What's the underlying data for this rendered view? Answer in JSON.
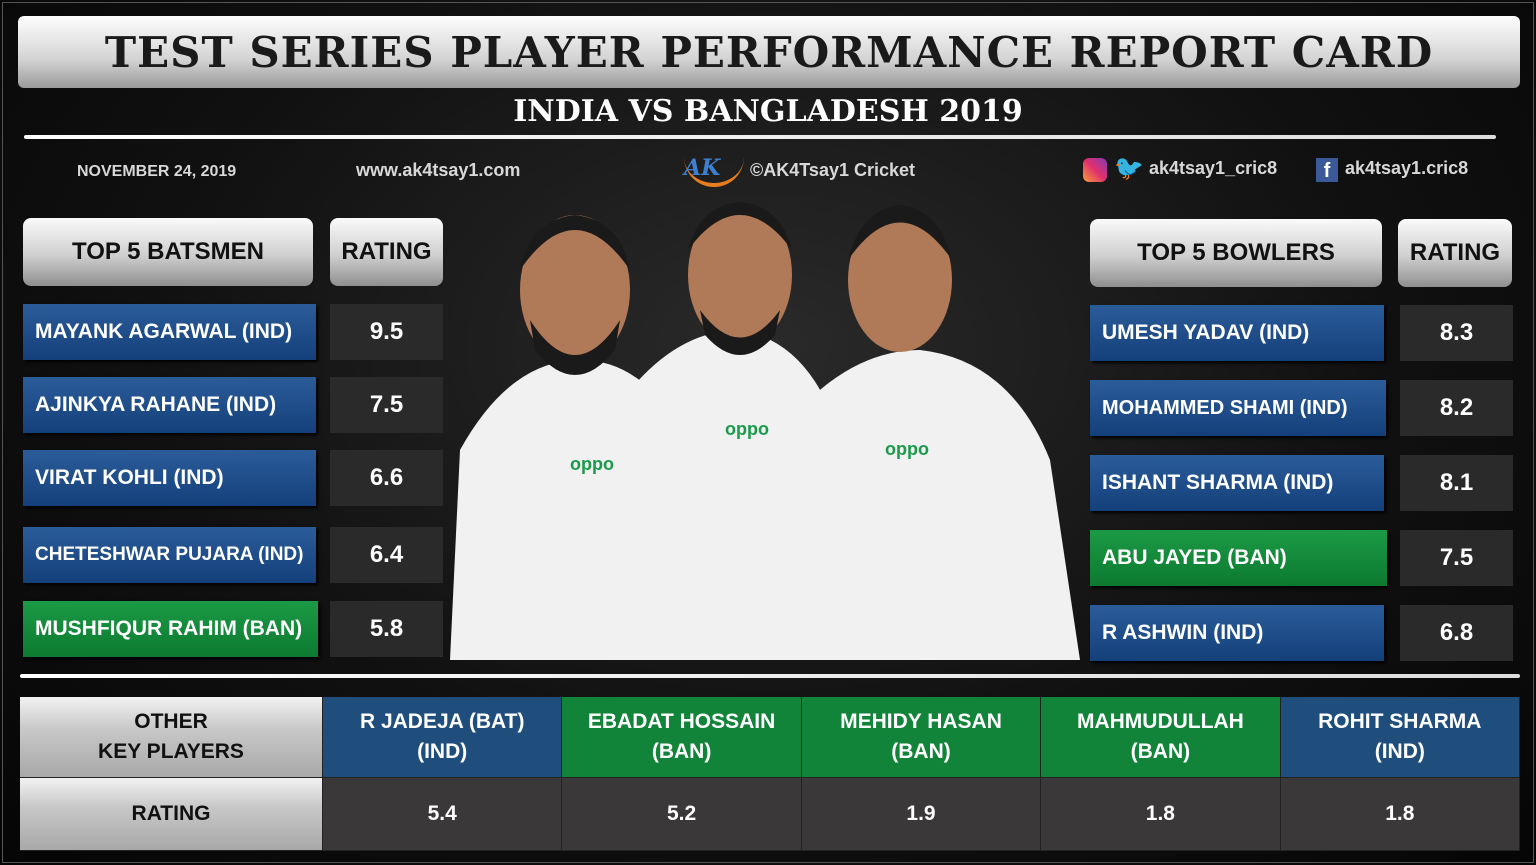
{
  "title": "TEST SERIES PLAYER PERFORMANCE REPORT CARD",
  "subtitle": "INDIA VS BANGLADESH 2019",
  "info": {
    "date": "NOVEMBER 24, 2019",
    "website": "www.ak4tsay1.com",
    "brand": "©AK4Tsay1 Cricket",
    "logo_text": "AK",
    "social_handle": "ak4tsay1_cric8",
    "facebook_handle": "ak4tsay1.cric8"
  },
  "colors": {
    "india": "#1f4e7d",
    "bangladesh": "#11843a"
  },
  "batsmen": {
    "header": "TOP 5 BATSMEN",
    "rating_header": "RATING",
    "rows": [
      {
        "name": "MAYANK AGARWAL (IND)",
        "rating": "9.5",
        "team": "IND"
      },
      {
        "name": "AJINKYA RAHANE (IND)",
        "rating": "7.5",
        "team": "IND"
      },
      {
        "name": "VIRAT KOHLI (IND)",
        "rating": "6.6",
        "team": "IND"
      },
      {
        "name": "CHETESHWAR PUJARA (IND)",
        "rating": "6.4",
        "team": "IND"
      },
      {
        "name": "MUSHFIQUR RAHIM (BAN)",
        "rating": "5.8",
        "team": "BAN"
      }
    ]
  },
  "bowlers": {
    "header": "TOP 5 BOWLERS",
    "rating_header": "RATING",
    "rows": [
      {
        "name": "UMESH YADAV  (IND)",
        "rating": "8.3",
        "team": "IND"
      },
      {
        "name": "MOHAMMED SHAMI (IND)",
        "rating": "8.2",
        "team": "IND"
      },
      {
        "name": "ISHANT SHARMA (IND)",
        "rating": "8.1",
        "team": "IND"
      },
      {
        "name": "ABU JAYED (BAN)",
        "rating": "7.5",
        "team": "BAN"
      },
      {
        "name": "R ASHWIN (IND)",
        "rating": "6.8",
        "team": "IND"
      }
    ]
  },
  "others": {
    "label": "OTHER\nKEY PLAYERS",
    "rating_label": "RATING",
    "players": [
      {
        "name": "R JADEJA (BAT)\n(IND)",
        "rating": "5.4",
        "team": "IND"
      },
      {
        "name": "EBADAT HOSSAIN\n(BAN)",
        "rating": "5.2",
        "team": "BAN"
      },
      {
        "name": "MEHIDY HASAN\n(BAN)",
        "rating": "1.9",
        "team": "BAN"
      },
      {
        "name": "MAHMUDULLAH\n(BAN)",
        "rating": "1.8",
        "team": "BAN"
      },
      {
        "name": "ROHIT SHARMA\n(IND)",
        "rating": "1.8",
        "team": "IND"
      }
    ]
  }
}
